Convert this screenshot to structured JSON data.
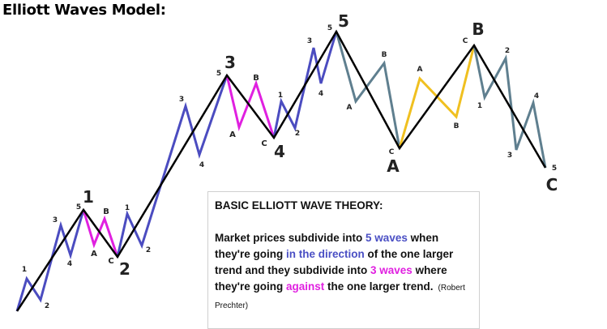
{
  "title": "Elliott Waves Model:",
  "colors": {
    "impulse": "#4b4cc0",
    "correction_pink": "#e020e0",
    "correction_gray": "#5f7f8f",
    "correction_yellow": "#f0c020",
    "main": "#000000",
    "major_label_red": "#e02020",
    "major_label_pink": "#e020e0"
  },
  "major_labels": {
    "w1": "1",
    "w2": "2",
    "w3": "3",
    "w4": "4",
    "w5": "5",
    "wA": "A",
    "wB": "B",
    "wC": "C"
  },
  "minor_labels": [
    "1",
    "2",
    "3",
    "4",
    "5",
    "A",
    "B",
    "C"
  ],
  "textbox": {
    "heading": "BASIC ELLIOTT WAVE THEORY:",
    "p1": "Market prices subdivide into ",
    "h1": "5 waves",
    "p2": " when they're going ",
    "h2": "in the direction",
    "p3": " of the one larger trend and they subdivide into ",
    "h3": "3 waves",
    "p4": " where they're going ",
    "h4": "against",
    "p5": " the one larger trend.",
    "attribution": "(Robert Prechter)"
  }
}
